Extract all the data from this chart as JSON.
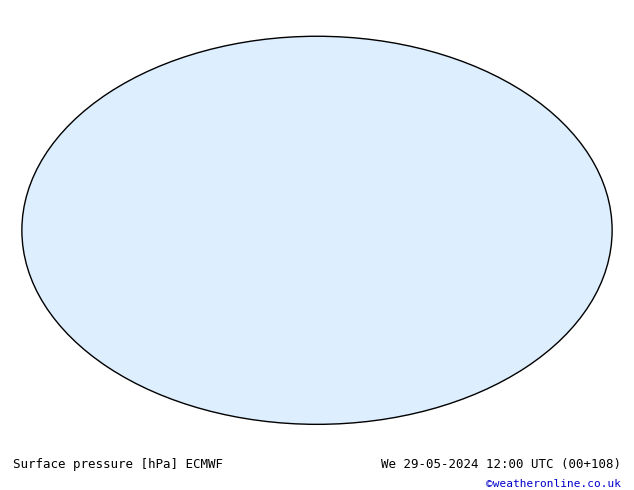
{
  "title_left": "Surface pressure [hPa] ECMWF",
  "title_right": "We 29-05-2024 12:00 UTC (00+108)",
  "credit": "©weatheronline.co.uk",
  "bg_color": "#ffffff",
  "map_bg": "#e8e8f0",
  "land_color": "#c8e6c8",
  "ocean_color": "#ddeeff",
  "contour_low_color": "#0000cc",
  "contour_high_color": "#cc0000",
  "contour_ref_color": "#000000",
  "ref_pressure": 1013,
  "contour_interval": 4,
  "pressure_min": 960,
  "pressure_max": 1044,
  "font_size_labels": 7,
  "font_size_bottom": 9,
  "credit_color": "#0000cc"
}
